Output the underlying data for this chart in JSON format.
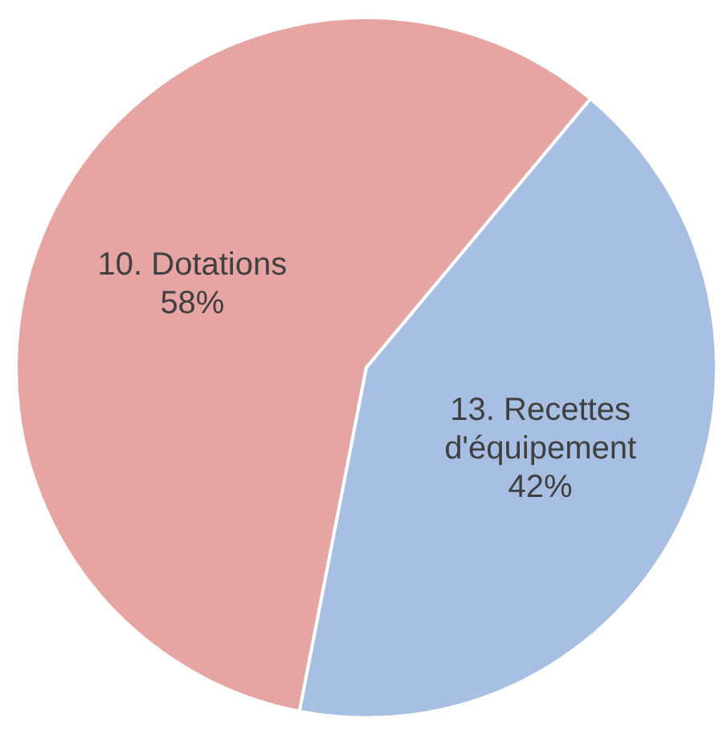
{
  "chart_data": {
    "type": "pie",
    "categories": [
      "10. Dotations",
      "13. Recettes d'équipement"
    ],
    "values": [
      58,
      42
    ],
    "colors": [
      "#e6a5a3",
      "#a7bfe2"
    ],
    "value_labels": [
      "58%",
      "42%"
    ]
  }
}
